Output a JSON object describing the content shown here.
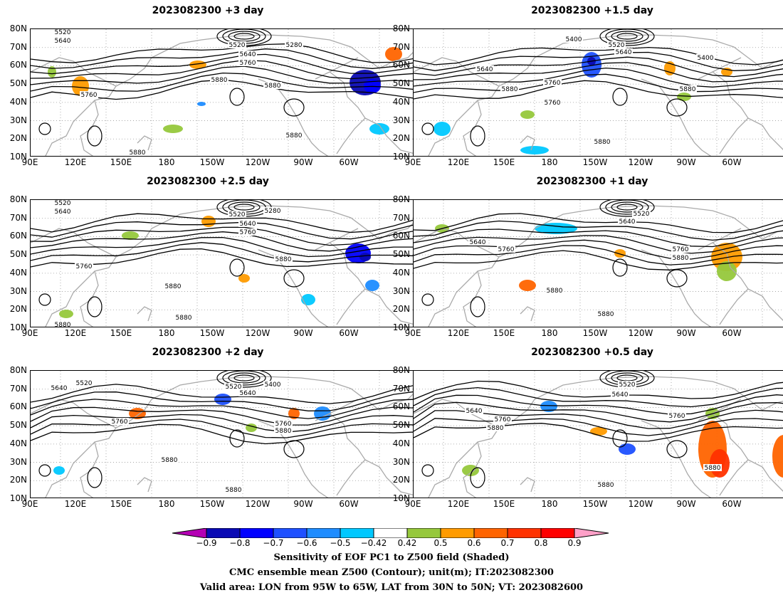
{
  "panels": [
    {
      "title": "2023082300  +3 day",
      "contour_labels": [
        "5520",
        "5640",
        "5520",
        "5280",
        "5640",
        "5760",
        "5880",
        "5760",
        "5880",
        "5880",
        "5880"
      ]
    },
    {
      "title": "2023082300  +1.5 day",
      "contour_labels": [
        "5400",
        "5520",
        "5640",
        "5400",
        "5640",
        "5760",
        "5880",
        "5880",
        "5760",
        "5880"
      ]
    },
    {
      "title": "2023082300  +2.5 day",
      "contour_labels": [
        "5520",
        "5640",
        "5520",
        "5280",
        "5640",
        "5760",
        "5760",
        "5880",
        "5880",
        "5880",
        "5880"
      ]
    },
    {
      "title": "2023082300  +1 day",
      "contour_labels": [
        "5520",
        "5640",
        "5640",
        "5760",
        "5760",
        "5880",
        "5880",
        "5880"
      ]
    },
    {
      "title": "2023082300  +2 day",
      "contour_labels": [
        "5520",
        "5640",
        "5520",
        "5400",
        "5640",
        "5760",
        "5760",
        "5880",
        "5880",
        "5880"
      ]
    },
    {
      "title": "2023082300  +0.5 day",
      "contour_labels": [
        "5520",
        "5640",
        "5640",
        "5760",
        "5880",
        "5760",
        "5880",
        "5880"
      ]
    }
  ],
  "lat_labels": [
    "80N",
    "70N",
    "60N",
    "50N",
    "40N",
    "30N",
    "20N",
    "10N"
  ],
  "lon_labels": [
    "90E",
    "120E",
    "150E",
    "180",
    "150W",
    "120W",
    "90W",
    "60W"
  ],
  "colorbar": {
    "ticks": [
      "−0.9",
      "−0.8",
      "−0.7",
      "−0.6",
      "−0.5",
      "−0.42",
      "0.42",
      "0.5",
      "0.6",
      "0.7",
      "0.8",
      "0.9"
    ],
    "colors": [
      "#0a0ab4",
      "#0000ff",
      "#1e50ff",
      "#1e8cff",
      "#00c8ff",
      "#ffffff",
      "#96c83c",
      "#ff9b00",
      "#ff6400",
      "#ff3200",
      "#ff0000"
    ],
    "low_color": "#b400b4",
    "high_color": "#ffa0c8"
  },
  "captions": {
    "line1": "Sensitivity of EOF PC1 to Z500 field (Shaded)",
    "line2": "CMC ensemble mean Z500 (Contour); unit(m); IT:2023082300",
    "line3": "Valid area: LON from 95W to 65W, LAT from 30N to 50N; VT: 2023082600"
  }
}
